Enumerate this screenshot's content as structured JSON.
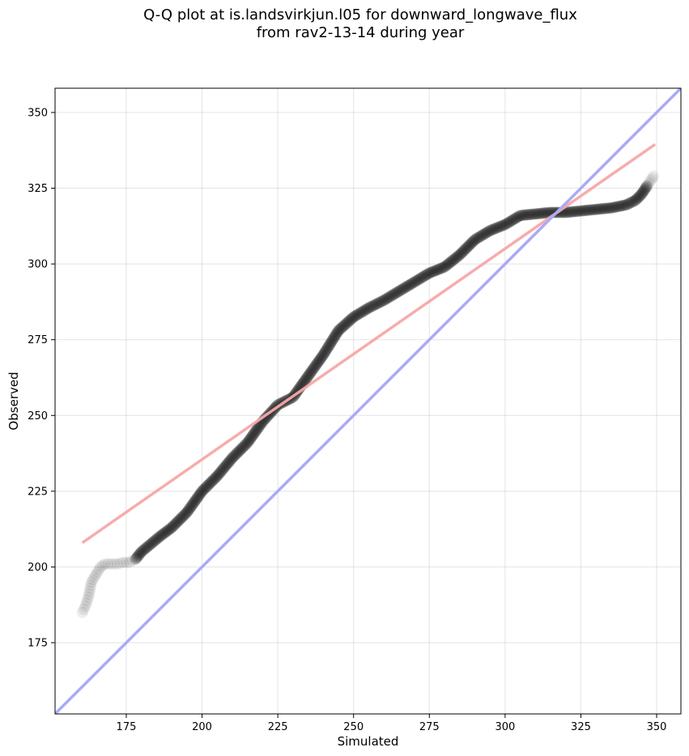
{
  "chart_data": {
    "type": "scatter",
    "title_line1": "Q-Q plot at is.landsvirkjun.l05 for downward_longwave_flux",
    "title_line2": "from rav2-13-14 during year",
    "xlabel": "Simulated",
    "ylabel": "Observed",
    "xlim": [
      151.5,
      358
    ],
    "ylim": [
      151.5,
      358
    ],
    "xticks": [
      175,
      200,
      225,
      250,
      275,
      300,
      325,
      350
    ],
    "yticks": [
      175,
      200,
      225,
      250,
      275,
      300,
      325,
      350
    ],
    "grid": true,
    "colors": {
      "points": "#000000",
      "fit_line": "#f7a8a8",
      "identity_line": "#aaaaf7"
    },
    "identity_line": {
      "name": "1:1 line",
      "x": [
        151.5,
        358
      ],
      "y": [
        151.5,
        358
      ]
    },
    "fit_line": {
      "name": "regression fit",
      "x": [
        160.5,
        349.5
      ],
      "y": [
        208,
        339.5
      ]
    },
    "quantile_curve": {
      "x": [
        160.5,
        161.5,
        162.5,
        163.5,
        165,
        166.5,
        168,
        170,
        172,
        174,
        176,
        178,
        180,
        183,
        186,
        190,
        195,
        200,
        205,
        210,
        215,
        220,
        225,
        230,
        235,
        240,
        245,
        250,
        255,
        260,
        265,
        270,
        275,
        280,
        285,
        290,
        295,
        300,
        305,
        310,
        315,
        320,
        325,
        330,
        335,
        340,
        343,
        345,
        347,
        349
      ],
      "y": [
        185,
        187,
        190,
        195,
        197.5,
        200,
        201,
        201,
        201,
        201.5,
        201.5,
        202.5,
        205,
        207.5,
        210,
        213,
        218,
        225,
        230,
        236,
        241,
        248,
        253.5,
        256,
        263,
        270,
        278,
        282.5,
        285.5,
        288,
        291,
        294,
        297,
        299,
        303,
        308,
        311,
        313,
        316,
        316.5,
        317,
        317,
        317.5,
        318,
        318.5,
        319.5,
        321,
        323,
        326,
        329
      ]
    }
  }
}
